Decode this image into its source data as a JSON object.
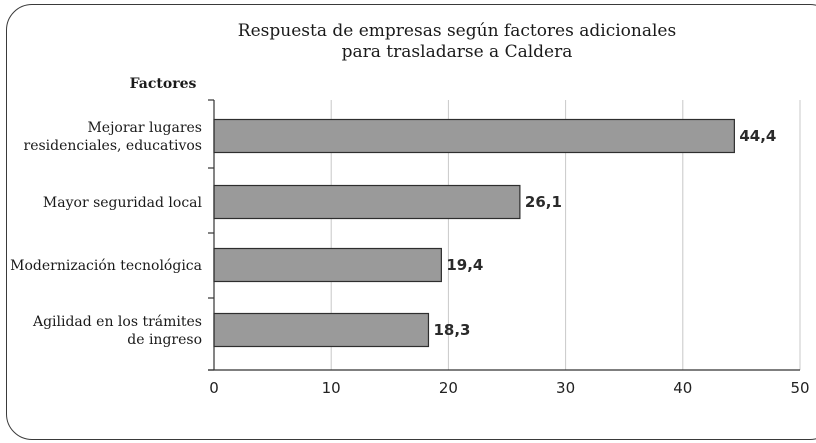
{
  "chart_data": {
    "type": "bar",
    "orientation": "horizontal",
    "title_lines": [
      "Respuesta de empresas según factores adicionales",
      "para trasladarse a Caldera"
    ],
    "ylabel": "Factores",
    "xlabel": "",
    "categories": [
      [
        "Mejorar lugares",
        "residenciales, educativos"
      ],
      [
        "Mayor seguridad local"
      ],
      [
        "Modernización tecnológica"
      ],
      [
        "Agilidad en los trámites",
        "de ingreso"
      ]
    ],
    "values": [
      44.4,
      26.1,
      19.4,
      18.3
    ],
    "value_labels": [
      "44,4",
      "26,1",
      "19,4",
      "18,3"
    ],
    "xlim": [
      0,
      50
    ],
    "xticks": [
      0,
      10,
      20,
      30,
      40,
      50
    ],
    "grid": true,
    "colors": {
      "bar_fill": "#9a9a9a",
      "bar_stroke": "#2e2e2e",
      "grid": "#c8c8c8"
    }
  }
}
